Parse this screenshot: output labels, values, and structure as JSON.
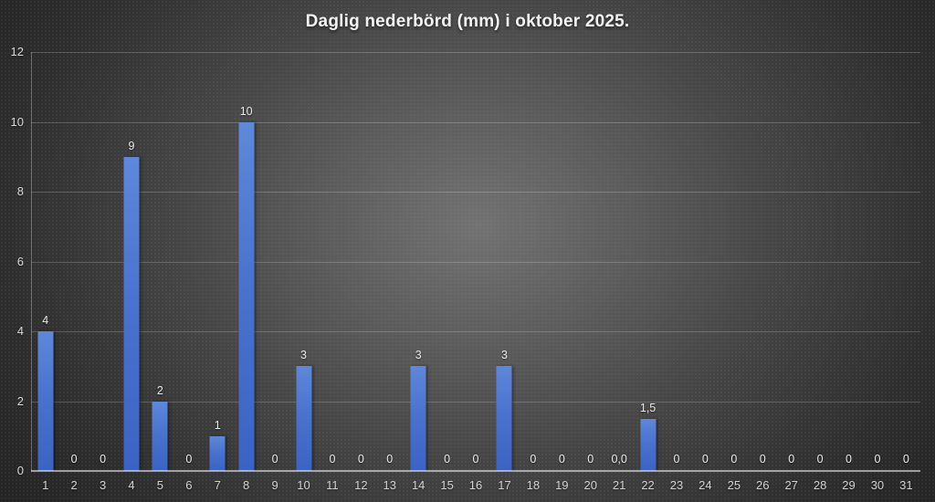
{
  "title": "Daglig nederbörd (mm) i oktober 2025.",
  "colors": {
    "background_center": "#727272",
    "background_edge": "#242424",
    "bar_top": "#5e88da",
    "bar_bottom": "#3a63c4",
    "title_text": "#f2f2f2",
    "label_text": "#e8e8e8",
    "axis_text": "#d6d6d6"
  },
  "chart_data": {
    "type": "bar",
    "title": "Daglig nederbörd (mm) i oktober 2025.",
    "categories": [
      "1",
      "2",
      "3",
      "4",
      "5",
      "6",
      "7",
      "8",
      "9",
      "10",
      "11",
      "12",
      "13",
      "14",
      "15",
      "16",
      "17",
      "18",
      "19",
      "20",
      "21",
      "22",
      "23",
      "24",
      "25",
      "26",
      "27",
      "28",
      "29",
      "30",
      "31"
    ],
    "values": [
      4,
      0,
      0,
      9,
      2,
      0,
      1,
      10,
      0,
      3,
      0,
      0,
      0,
      3,
      0,
      0,
      3,
      0,
      0,
      0,
      0.0,
      1.5,
      0,
      0,
      0,
      0,
      0,
      0,
      0,
      0,
      0
    ],
    "value_labels": [
      "4",
      "0",
      "0",
      "9",
      "2",
      "0",
      "1",
      "10",
      "0",
      "3",
      "0",
      "0",
      "0",
      "3",
      "0",
      "0",
      "3",
      "0",
      "0",
      "0",
      "0,0",
      "1,5",
      "0",
      "0",
      "0",
      "0",
      "0",
      "0",
      "0",
      "0",
      "0"
    ],
    "xlabel": "",
    "ylabel": "",
    "ylim": [
      0,
      12
    ],
    "yticks": [
      0,
      2,
      4,
      6,
      8,
      10,
      12
    ],
    "grid": true,
    "legend_position": "none"
  }
}
